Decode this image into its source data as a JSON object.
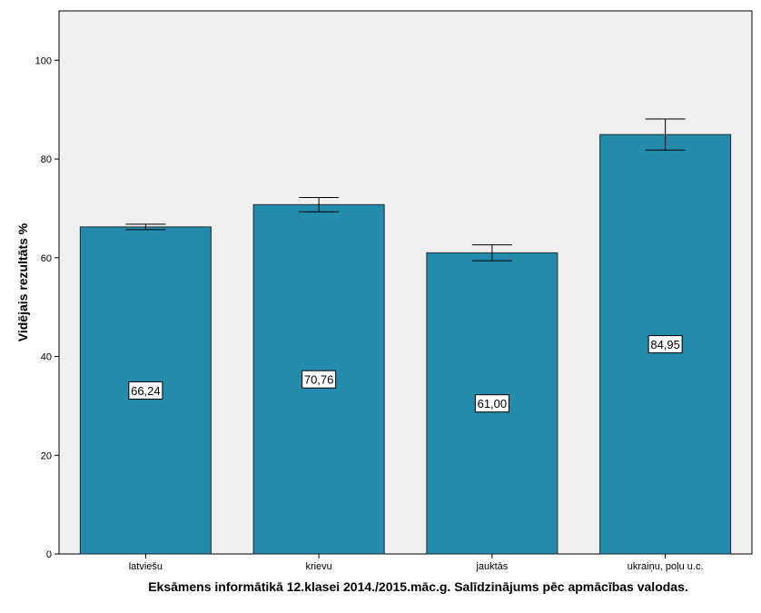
{
  "chart_data": {
    "type": "bar",
    "title": "",
    "xlabel": "Eksāmens informātikā 12.klasei 2014./2015.māc.g. Salīdzinājums pēc apmācības valodas.",
    "ylabel": "Vidējais rezultāts %",
    "ylim": [
      0,
      110
    ],
    "yticks": [
      0,
      20,
      40,
      60,
      80,
      100
    ],
    "categories": [
      "latviešu",
      "krievu",
      "jauktās",
      "ukraiņu, poļu u.c."
    ],
    "values": [
      66.24,
      70.76,
      61.0,
      84.95
    ],
    "value_labels": [
      "66,24",
      "70,76",
      "61,00",
      "84,95"
    ],
    "error_bars": [
      {
        "low": 65.7,
        "high": 66.8
      },
      {
        "low": 69.3,
        "high": 72.2
      },
      {
        "low": 59.4,
        "high": 62.6
      },
      {
        "low": 81.8,
        "high": 88.1
      }
    ],
    "grid": false,
    "colors": {
      "bar": "#248BAD",
      "plot_background": "#F0F0F0",
      "axis": "#000000"
    }
  }
}
